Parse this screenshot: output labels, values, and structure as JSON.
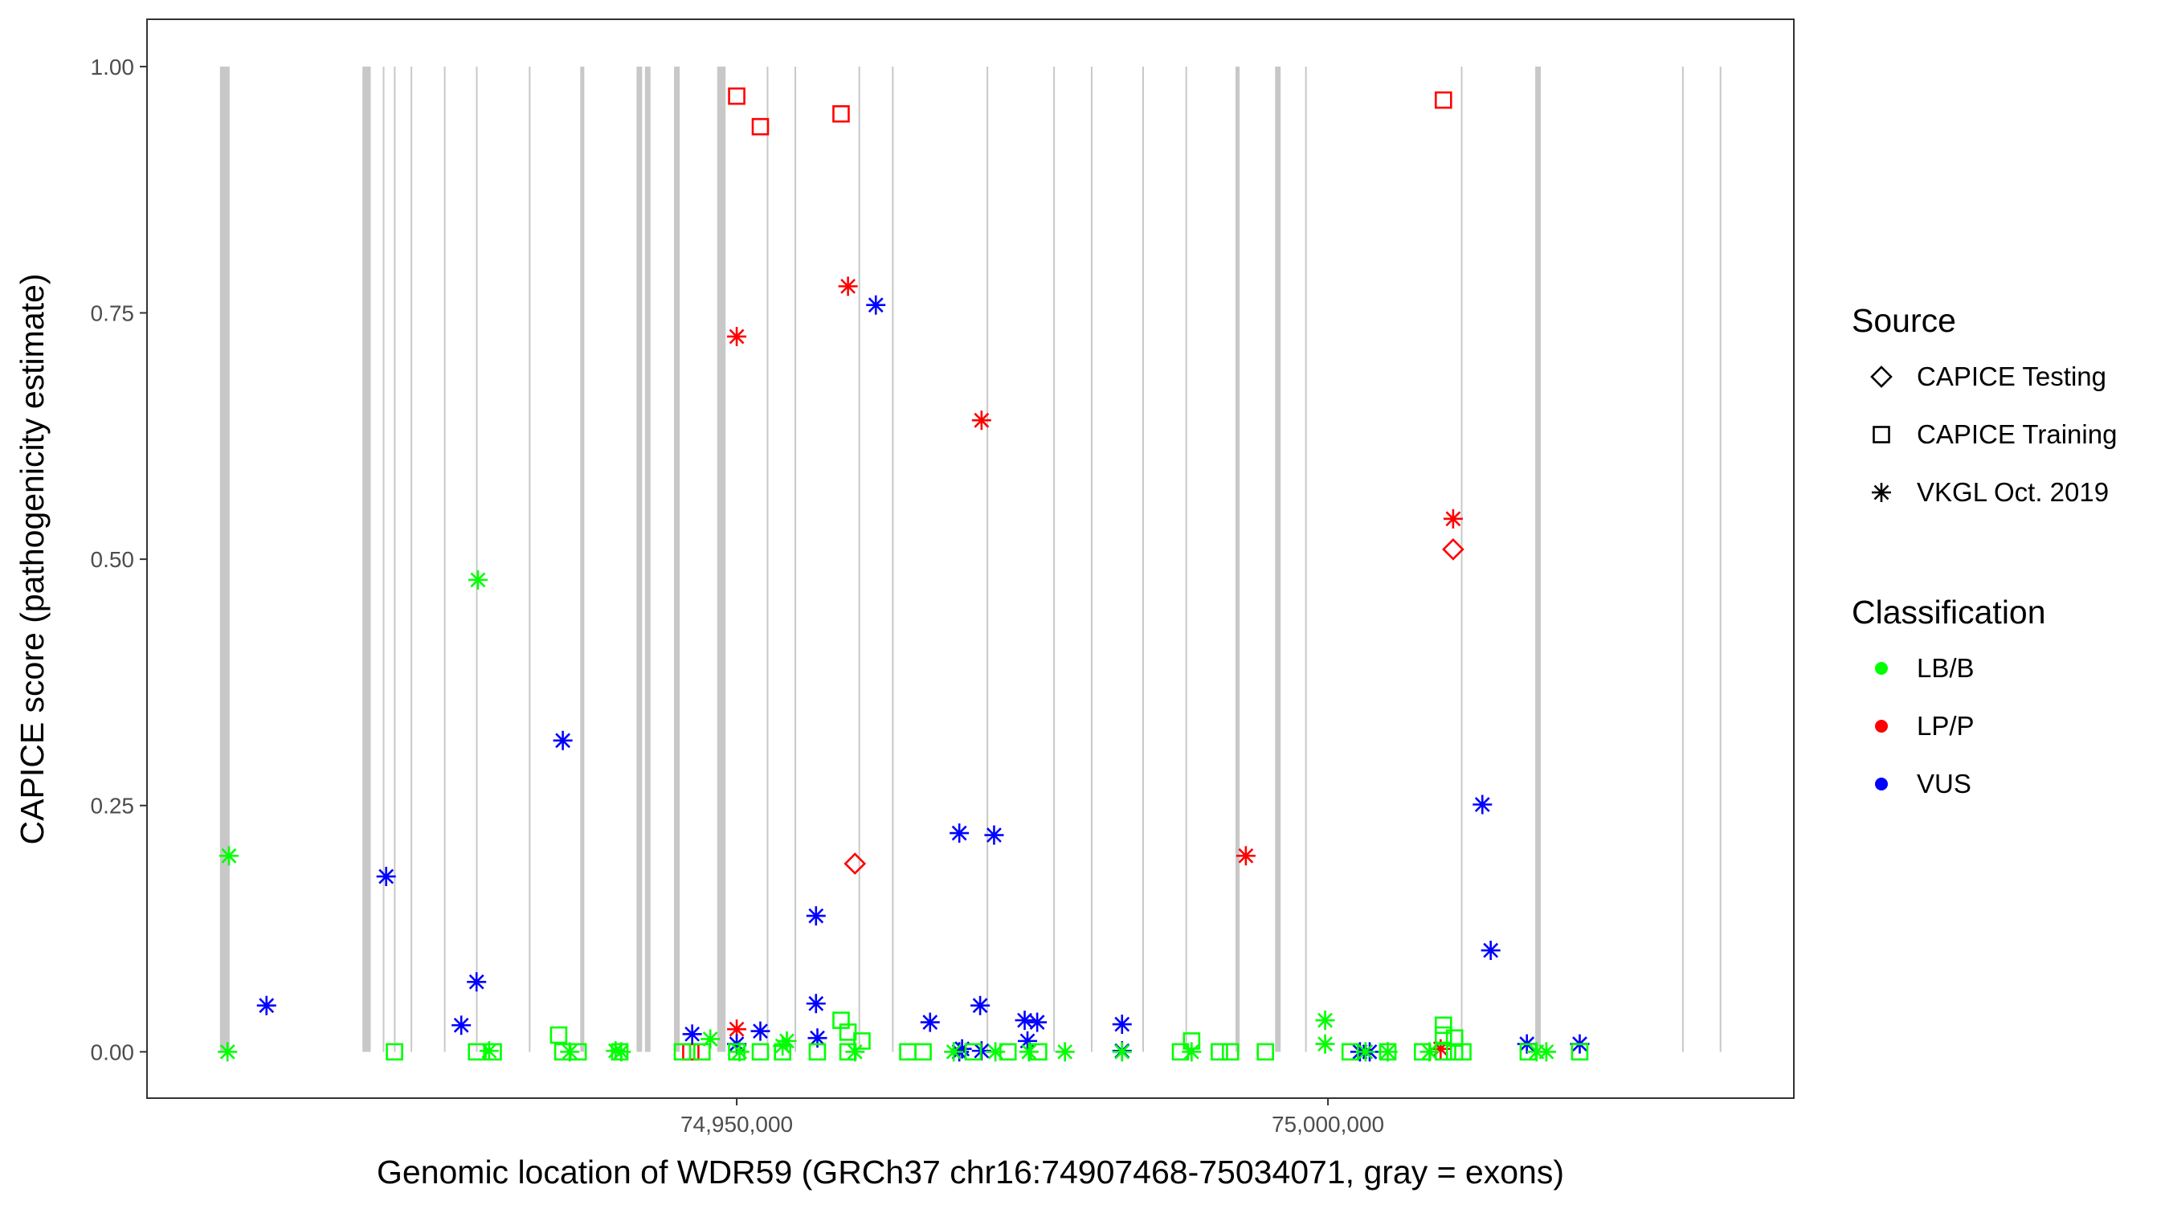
{
  "chart_data": {
    "type": "scatter",
    "xlabel": "Genomic location of WDR59 (GRCh37 chr16:74907468-75034071, gray = exons)",
    "ylabel": "CAPICE score (pathogenicity estimate)",
    "xlim": [
      74900130,
      75039400
    ],
    "ylim": [
      -0.047,
      1.048
    ],
    "x_ticks": [
      74950000,
      75000000
    ],
    "x_tick_labels": [
      "74,950,000",
      "75,000,000"
    ],
    "y_ticks": [
      0,
      0.25,
      0.5,
      0.75,
      1.0
    ],
    "y_tick_labels": [
      "0.00",
      "0.25",
      "0.50",
      "0.75",
      "1.00"
    ],
    "grid": false,
    "legend_placement": "right",
    "legend": {
      "source_title": "Source",
      "source": [
        {
          "label": "CAPICE Testing",
          "shape": "diamond"
        },
        {
          "label": "CAPICE Training",
          "shape": "square"
        },
        {
          "label": "VKGL Oct. 2019",
          "shape": "asterisk"
        }
      ],
      "class_title": "Classification",
      "classification": [
        {
          "label": "LB/B",
          "color": "#00ff00"
        },
        {
          "label": "LP/P",
          "color": "#ff0000"
        },
        {
          "label": "VUS",
          "color": "#0000ff"
        }
      ]
    },
    "exons": [
      [
        74906300,
        74907120
      ],
      [
        74918350,
        74919050
      ],
      [
        74920070,
        74920170
      ],
      [
        74921010,
        74921110
      ],
      [
        74922420,
        74922520
      ],
      [
        74925240,
        74925340
      ],
      [
        74927950,
        74928050
      ],
      [
        74932420,
        74932520
      ],
      [
        74936770,
        74937110
      ],
      [
        74941530,
        74942000
      ],
      [
        74942240,
        74942710
      ],
      [
        74944700,
        74945180
      ],
      [
        74948350,
        74949060
      ],
      [
        74952540,
        74952640
      ],
      [
        74954890,
        74954990
      ],
      [
        74960300,
        74960400
      ],
      [
        74963130,
        74963230
      ],
      [
        74971130,
        74971230
      ],
      [
        74976770,
        74976870
      ],
      [
        74979950,
        74980050
      ],
      [
        74984300,
        74984400
      ],
      [
        74987950,
        74988050
      ],
      [
        74992180,
        74992530
      ],
      [
        74995530,
        74996000
      ],
      [
        74998070,
        74998170
      ],
      [
        75011240,
        75011340
      ],
      [
        75017530,
        75018000
      ],
      [
        75029950,
        75030050
      ],
      [
        75033130,
        75033230
      ]
    ],
    "points_columns": [
      "position",
      "score",
      "source_index",
      "classification_index"
    ],
    "points": [
      [
        74950000,
        0.97,
        1,
        1
      ],
      [
        74952000,
        0.939,
        1,
        1
      ],
      [
        74958824,
        0.952,
        1,
        1
      ],
      [
        75009765,
        0.966,
        1,
        1
      ],
      [
        74950000,
        0.726,
        2,
        1
      ],
      [
        74959412,
        0.777,
        2,
        1
      ],
      [
        74970706,
        0.641,
        2,
        1
      ],
      [
        75010588,
        0.541,
        2,
        1
      ],
      [
        75010588,
        0.51,
        0,
        1
      ],
      [
        74960000,
        0.191,
        0,
        1
      ],
      [
        74993059,
        0.199,
        2,
        1
      ],
      [
        74950000,
        0.023,
        2,
        1
      ],
      [
        74946118,
        0.0,
        1,
        1
      ],
      [
        75009530,
        0.003,
        2,
        1
      ],
      [
        74910235,
        0.047,
        2,
        2
      ],
      [
        74920353,
        0.178,
        2,
        2
      ],
      [
        74926706,
        0.027,
        2,
        2
      ],
      [
        74928000,
        0.071,
        2,
        2
      ],
      [
        74935294,
        0.316,
        2,
        2
      ],
      [
        74946235,
        0.018,
        2,
        2
      ],
      [
        74950000,
        0.008,
        2,
        2
      ],
      [
        74952000,
        0.021,
        2,
        2
      ],
      [
        74956706,
        0.138,
        2,
        2
      ],
      [
        74956706,
        0.049,
        2,
        2
      ],
      [
        74956824,
        0.014,
        2,
        2
      ],
      [
        74961765,
        0.758,
        2,
        2
      ],
      [
        74966353,
        0.03,
        2,
        2
      ],
      [
        74968824,
        0.222,
        2,
        2
      ],
      [
        74968824,
        0.0,
        2,
        2
      ],
      [
        74969060,
        0.003,
        2,
        2
      ],
      [
        74970588,
        0.047,
        2,
        2
      ],
      [
        74970706,
        0.001,
        2,
        2
      ],
      [
        74971765,
        0.22,
        2,
        2
      ],
      [
        74974353,
        0.032,
        2,
        2
      ],
      [
        74975412,
        0.03,
        2,
        2
      ],
      [
        74974590,
        0.011,
        2,
        2
      ],
      [
        74982588,
        0.028,
        2,
        2
      ],
      [
        74982588,
        0.001,
        2,
        2
      ],
      [
        75002706,
        0.0,
        2,
        2
      ],
      [
        75003530,
        0.0,
        2,
        2
      ],
      [
        75013059,
        0.251,
        2,
        2
      ],
      [
        75013765,
        0.103,
        2,
        2
      ],
      [
        75016824,
        0.008,
        2,
        2
      ],
      [
        75021294,
        0.008,
        2,
        2
      ],
      [
        74907059,
        0.199,
        2,
        0
      ],
      [
        74906940,
        0.0,
        2,
        0
      ],
      [
        74921059,
        0.0,
        1,
        0
      ],
      [
        74928118,
        0.479,
        2,
        0
      ],
      [
        74928000,
        0.0,
        1,
        0
      ],
      [
        74929060,
        0.001,
        2,
        0
      ],
      [
        74929410,
        0.0,
        1,
        0
      ],
      [
        74934941,
        0.017,
        1,
        0
      ],
      [
        74935294,
        0.0,
        1,
        0
      ],
      [
        74935880,
        0.0,
        2,
        0
      ],
      [
        74936590,
        0.0,
        1,
        0
      ],
      [
        74939760,
        0.001,
        2,
        0
      ],
      [
        74940230,
        0.0,
        2,
        0
      ],
      [
        74940110,
        0.0,
        1,
        0
      ],
      [
        74945410,
        0.0,
        1,
        0
      ],
      [
        74947060,
        0.0,
        1,
        0
      ],
      [
        74947765,
        0.013,
        2,
        0
      ],
      [
        74950000,
        0.0,
        1,
        0
      ],
      [
        74950240,
        0.0,
        2,
        0
      ],
      [
        74952000,
        0.0,
        1,
        0
      ],
      [
        74953880,
        0.006,
        2,
        0
      ],
      [
        74954240,
        0.011,
        2,
        0
      ],
      [
        74953880,
        0.0,
        1,
        0
      ],
      [
        74956820,
        0.0,
        1,
        0
      ],
      [
        74958824,
        0.032,
        1,
        0
      ],
      [
        74959410,
        0.02,
        1,
        0
      ],
      [
        74959410,
        0.0,
        1,
        0
      ],
      [
        74960000,
        0.0,
        2,
        0
      ],
      [
        74960590,
        0.011,
        1,
        0
      ],
      [
        74964470,
        0.0,
        1,
        0
      ],
      [
        74965760,
        0.0,
        1,
        0
      ],
      [
        74968350,
        0.0,
        2,
        0
      ],
      [
        74970000,
        0.0,
        1,
        0
      ],
      [
        74971880,
        0.0,
        2,
        0
      ],
      [
        74972940,
        0.0,
        1,
        0
      ],
      [
        74974710,
        0.0,
        2,
        0
      ],
      [
        74975530,
        0.0,
        1,
        0
      ],
      [
        74977760,
        0.0,
        2,
        0
      ],
      [
        74982590,
        0.0,
        2,
        0
      ],
      [
        74987530,
        0.0,
        1,
        0
      ],
      [
        74988470,
        0.011,
        1,
        0
      ],
      [
        74988470,
        0.0,
        2,
        0
      ],
      [
        74990820,
        0.0,
        1,
        0
      ],
      [
        74991760,
        0.0,
        1,
        0
      ],
      [
        74994710,
        0.0,
        1,
        0
      ],
      [
        74999760,
        0.032,
        2,
        0
      ],
      [
        74999760,
        0.008,
        2,
        0
      ],
      [
        75001880,
        0.0,
        1,
        0
      ],
      [
        75003180,
        0.0,
        2,
        0
      ],
      [
        75005060,
        0.0,
        2,
        0
      ],
      [
        75005060,
        0.0,
        1,
        0
      ],
      [
        75008000,
        0.0,
        1,
        0
      ],
      [
        75008590,
        0.0,
        2,
        0
      ],
      [
        75009765,
        0.027,
        1,
        0
      ],
      [
        75009765,
        0.017,
        1,
        0
      ],
      [
        75010710,
        0.014,
        1,
        0
      ],
      [
        75009765,
        0.0,
        1,
        0
      ],
      [
        75010710,
        0.0,
        1,
        0
      ],
      [
        75011410,
        0.0,
        1,
        0
      ],
      [
        75016940,
        0.0,
        1,
        0
      ],
      [
        75017650,
        0.0,
        2,
        0
      ],
      [
        75018470,
        0.0,
        2,
        0
      ],
      [
        75021290,
        0.0,
        1,
        0
      ]
    ]
  }
}
